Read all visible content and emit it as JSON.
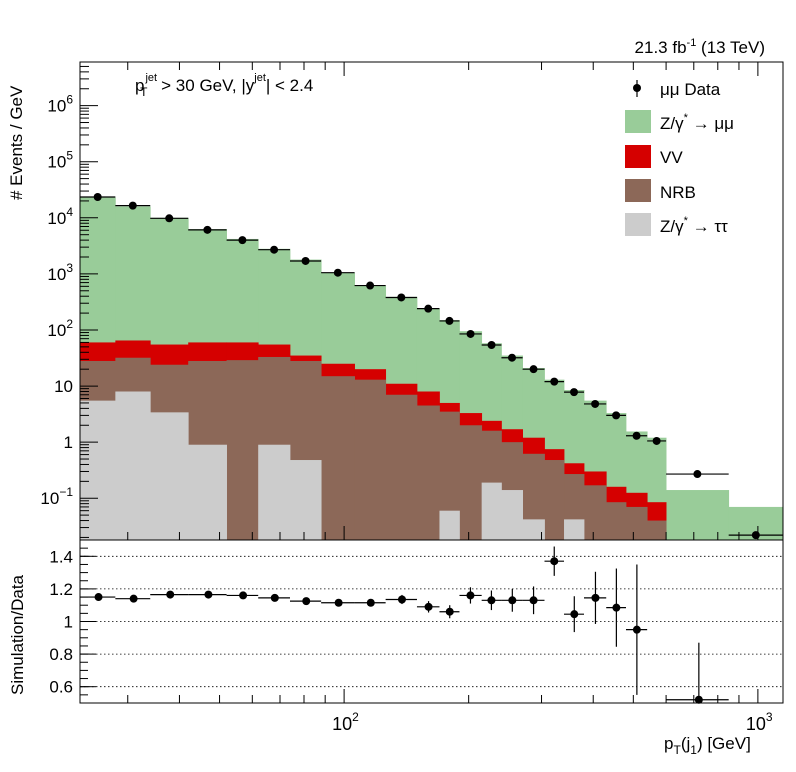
{
  "header": {
    "lumi_value": "21.3 fb",
    "lumi_exp": "-1",
    "lumi_rest": " (13 TeV)"
  },
  "chart_data": [
    {
      "type": "area",
      "subtype": "stacked-histogram",
      "log_y": true,
      "log_x": true,
      "xlim": [
        23,
        1150
      ],
      "ylim": [
        0.018,
        6000000
      ],
      "selection": {
        "pt_base": "p",
        "pt_sub": "T",
        "pt_sup": "jet",
        "pt_cut": " > 30 GeV,  |y",
        "y_sup": "jet",
        "y_cut": "| < 2.4"
      },
      "ylabel": "# Events / GeV",
      "y_ticks": [
        {
          "v": 0.1,
          "base": "10",
          "exp": "−1"
        },
        {
          "v": 1,
          "base": "1",
          "exp": ""
        },
        {
          "v": 10,
          "base": "10",
          "exp": ""
        },
        {
          "v": 100,
          "base": "10",
          "exp": "2"
        },
        {
          "v": 1000,
          "base": "10",
          "exp": "3"
        },
        {
          "v": 10000,
          "base": "10",
          "exp": "4"
        },
        {
          "v": 100000,
          "base": "10",
          "exp": "5"
        },
        {
          "v": 1000000,
          "base": "10",
          "exp": "6"
        }
      ],
      "legend": {
        "placement": "top-right",
        "entries": [
          {
            "key": "data",
            "kind": "marker",
            "label": "μμ Data",
            "color": "#000000"
          },
          {
            "key": "dy",
            "kind": "box",
            "label_base": "Z/γ",
            "label_sup": "*",
            "label_rest": " → μμ",
            "color": "#99cc99"
          },
          {
            "key": "vv",
            "kind": "box",
            "label": "VV",
            "color": "#d50000"
          },
          {
            "key": "nrb",
            "kind": "box",
            "label": "NRB",
            "color": "#8c6858"
          },
          {
            "key": "tautau",
            "kind": "box",
            "label_base": "Z/γ",
            "label_sup": "*",
            "label_rest": " → ττ",
            "color": "#cccccc"
          }
        ]
      },
      "bins": [
        {
          "lo": 23,
          "hi": 28,
          "dy": 23000,
          "vv": 60,
          "nrb": 28,
          "tautau": 5.5,
          "data": 23500
        },
        {
          "lo": 28,
          "hi": 34,
          "dy": 16000,
          "vv": 65,
          "nrb": 32,
          "tautau": 8,
          "data": 16500
        },
        {
          "lo": 34,
          "hi": 42,
          "dy": 10000,
          "vv": 55,
          "nrb": 24,
          "tautau": 3.4,
          "data": 9800
        },
        {
          "lo": 42,
          "hi": 52,
          "dy": 6300,
          "vv": 60,
          "nrb": 28,
          "tautau": 0.9,
          "data": 6100
        },
        {
          "lo": 52,
          "hi": 62,
          "dy": 4200,
          "vv": 60,
          "nrb": 29,
          "tautau": 0.018,
          "data": 4000
        },
        {
          "lo": 62,
          "hi": 74,
          "dy": 2800,
          "vv": 55,
          "nrb": 33,
          "tautau": 0.9,
          "data": 2700
        },
        {
          "lo": 74,
          "hi": 88,
          "dy": 1800,
          "vv": 35,
          "nrb": 28,
          "tautau": 0.48,
          "data": 1700
        },
        {
          "lo": 88,
          "hi": 106,
          "dy": 1050,
          "vv": 25,
          "nrb": 15,
          "tautau": 0.018,
          "data": 1050
        },
        {
          "lo": 106,
          "hi": 126,
          "dy": 620,
          "vv": 20,
          "nrb": 13,
          "tautau": 0.018,
          "data": 620
        },
        {
          "lo": 126,
          "hi": 150,
          "dy": 390,
          "vv": 11,
          "nrb": 7,
          "tautau": 0.018,
          "data": 380
        },
        {
          "lo": 150,
          "hi": 170,
          "dy": 240,
          "vv": 8,
          "nrb": 4.5,
          "tautau": 0.018,
          "data": 240
        },
        {
          "lo": 170,
          "hi": 190,
          "dy": 150,
          "vv": 5,
          "nrb": 3.5,
          "tautau": 0.06,
          "data": 145
        },
        {
          "lo": 190,
          "hi": 215,
          "dy": 95,
          "vv": 3.3,
          "nrb": 2.0,
          "tautau": 0.018,
          "data": 85
        },
        {
          "lo": 215,
          "hi": 240,
          "dy": 58,
          "vv": 2.4,
          "nrb": 1.6,
          "tautau": 0.19,
          "data": 54
        },
        {
          "lo": 240,
          "hi": 270,
          "dy": 35,
          "vv": 1.7,
          "nrb": 1.0,
          "tautau": 0.14,
          "data": 32
        },
        {
          "lo": 270,
          "hi": 305,
          "dy": 21,
          "vv": 1.2,
          "nrb": 0.62,
          "tautau": 0.042,
          "data": 20
        },
        {
          "lo": 305,
          "hi": 340,
          "dy": 13,
          "vv": 0.75,
          "nrb": 0.48,
          "tautau": 0.018,
          "data": 12
        },
        {
          "lo": 340,
          "hi": 380,
          "dy": 8.5,
          "vv": 0.42,
          "nrb": 0.27,
          "tautau": 0.042,
          "data": 7.8
        },
        {
          "lo": 380,
          "hi": 430,
          "dy": 5.5,
          "vv": 0.3,
          "nrb": 0.17,
          "tautau": 0.018,
          "data": 4.8
        },
        {
          "lo": 430,
          "hi": 480,
          "dy": 3.3,
          "vv": 0.16,
          "nrb": 0.085,
          "tautau": 0.018,
          "data": 3.0
        },
        {
          "lo": 480,
          "hi": 540,
          "dy": 1.55,
          "vv": 0.125,
          "nrb": 0.07,
          "tautau": 0.018,
          "data": 1.3
        },
        {
          "lo": 540,
          "hi": 600,
          "dy": 1.2,
          "vv": 0.085,
          "nrb": 0.04,
          "tautau": 0.018,
          "data": 1.05
        },
        {
          "lo": 600,
          "hi": 850,
          "dy": 0.14,
          "vv": 0.018,
          "nrb": 0.018,
          "tautau": 0.018,
          "data": 0.27
        },
        {
          "lo": 850,
          "hi": 1150,
          "dy": 0.07,
          "vv": 0.018,
          "nrb": 0.018,
          "tautau": 0.018,
          "data": 0.022
        }
      ]
    },
    {
      "type": "scatter",
      "subtype": "ratio",
      "log_x": true,
      "xlim": [
        23,
        1150
      ],
      "ylim": [
        0.5,
        1.5
      ],
      "ylabel": "Simulation/Data",
      "y_ticks": [
        "0.6",
        "0.8",
        "1",
        "1.2",
        "1.4"
      ],
      "x_ticks": [
        {
          "v": 100,
          "base": "10",
          "exp": "2"
        },
        {
          "v": 1000,
          "base": "10",
          "exp": "3"
        }
      ],
      "xlabel_base": "p",
      "xlabel_sub": "T",
      "xlabel_mid": "(j",
      "xlabel_sub2": "1",
      "xlabel_rest": ") [GeV]",
      "points": [
        {
          "x": 25.5,
          "y": 1.15,
          "err": 0.008,
          "xlo": 23,
          "xhi": 28
        },
        {
          "x": 31,
          "y": 1.14,
          "err": 0.01,
          "xlo": 28,
          "xhi": 34
        },
        {
          "x": 38,
          "y": 1.165,
          "err": 0.012,
          "xlo": 34,
          "xhi": 42
        },
        {
          "x": 47,
          "y": 1.165,
          "err": 0.014,
          "xlo": 42,
          "xhi": 52
        },
        {
          "x": 57,
          "y": 1.16,
          "err": 0.014,
          "xlo": 52,
          "xhi": 62
        },
        {
          "x": 68,
          "y": 1.145,
          "err": 0.015,
          "xlo": 62,
          "xhi": 74
        },
        {
          "x": 81,
          "y": 1.125,
          "err": 0.017,
          "xlo": 74,
          "xhi": 88
        },
        {
          "x": 97,
          "y": 1.115,
          "err": 0.02,
          "xlo": 88,
          "xhi": 106
        },
        {
          "x": 116,
          "y": 1.115,
          "err": 0.022,
          "xlo": 106,
          "xhi": 126
        },
        {
          "x": 138,
          "y": 1.135,
          "err": 0.028,
          "xlo": 126,
          "xhi": 150
        },
        {
          "x": 160,
          "y": 1.09,
          "err": 0.035,
          "xlo": 150,
          "xhi": 170
        },
        {
          "x": 180,
          "y": 1.06,
          "err": 0.04,
          "xlo": 170,
          "xhi": 190
        },
        {
          "x": 202,
          "y": 1.16,
          "err": 0.05,
          "xlo": 190,
          "xhi": 215
        },
        {
          "x": 227,
          "y": 1.13,
          "err": 0.06,
          "xlo": 215,
          "xhi": 240
        },
        {
          "x": 255,
          "y": 1.13,
          "err": 0.07,
          "xlo": 240,
          "xhi": 270
        },
        {
          "x": 287,
          "y": 1.13,
          "err": 0.085,
          "xlo": 270,
          "xhi": 305
        },
        {
          "x": 322,
          "y": 1.37,
          "err": 0.09,
          "xlo": 305,
          "xhi": 340
        },
        {
          "x": 360,
          "y": 1.045,
          "err": 0.11,
          "xlo": 340,
          "xhi": 380
        },
        {
          "x": 405,
          "y": 1.145,
          "err": 0.16,
          "xlo": 380,
          "xhi": 430
        },
        {
          "x": 455,
          "y": 1.085,
          "err": 0.24,
          "xlo": 430,
          "xhi": 480
        },
        {
          "x": 510,
          "y": 0.95,
          "err": 0.4,
          "xlo": 480,
          "xhi": 540
        },
        {
          "x": 720,
          "y": 0.52,
          "err": 0.35,
          "xlo": 600,
          "xhi": 850
        }
      ]
    }
  ]
}
